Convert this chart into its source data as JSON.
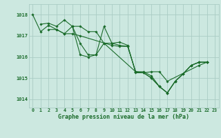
{
  "bg_color": "#cce8e0",
  "grid_color": "#aaccc4",
  "line_color": "#1a6b2a",
  "xlabel": "Graphe pression niveau de la mer (hPa)",
  "ylabel_ticks": [
    1014,
    1015,
    1016,
    1017,
    1018
  ],
  "xlim": [
    -0.5,
    23.5
  ],
  "ylim": [
    1013.6,
    1018.5
  ],
  "series": [
    {
      "x": [
        0,
        1,
        2,
        3,
        4,
        5,
        6,
        7,
        8,
        9,
        10,
        11,
        12,
        13,
        14,
        15,
        16,
        17,
        18,
        19,
        20,
        21,
        22
      ],
      "y": [
        1018.0,
        1017.2,
        1017.5,
        1017.3,
        1017.1,
        1017.45,
        1016.1,
        1016.0,
        1016.1,
        1017.45,
        1016.65,
        1016.55,
        1016.5,
        1015.3,
        1015.25,
        1015.0,
        1014.6,
        1014.3,
        1014.85,
        1015.2,
        1015.6,
        1015.75,
        1015.75
      ]
    },
    {
      "x": [
        1,
        2,
        3,
        4,
        5,
        6,
        7,
        8,
        9,
        10,
        11,
        12,
        13,
        14,
        15,
        16,
        17,
        21,
        22
      ],
      "y": [
        1017.55,
        1017.6,
        1017.45,
        1017.75,
        1017.45,
        1017.45,
        1017.2,
        1017.2,
        1016.65,
        1016.65,
        1016.7,
        1016.55,
        1015.25,
        1015.25,
        1015.3,
        1015.3,
        1014.85,
        1015.6,
        1015.75
      ]
    },
    {
      "x": [
        2,
        3,
        4,
        5,
        6,
        10,
        11,
        12,
        13,
        14,
        15,
        16,
        17,
        18,
        19,
        20,
        21,
        22
      ],
      "y": [
        1017.3,
        1017.3,
        1017.1,
        1017.1,
        1017.0,
        1016.55,
        1016.5,
        1016.5,
        1015.3,
        1015.3,
        1015.1,
        1014.6,
        1014.3,
        1014.85,
        1015.2,
        1015.6,
        1015.75,
        1015.75
      ]
    },
    {
      "x": [
        5,
        6,
        7,
        8,
        9,
        13,
        14,
        15,
        16,
        17,
        18,
        19,
        20,
        21,
        22
      ],
      "y": [
        1017.45,
        1016.65,
        1016.1,
        1016.1,
        1016.65,
        1015.3,
        1015.25,
        1015.0,
        1014.6,
        1014.3,
        1014.85,
        1015.2,
        1015.6,
        1015.75,
        1015.75
      ]
    }
  ]
}
